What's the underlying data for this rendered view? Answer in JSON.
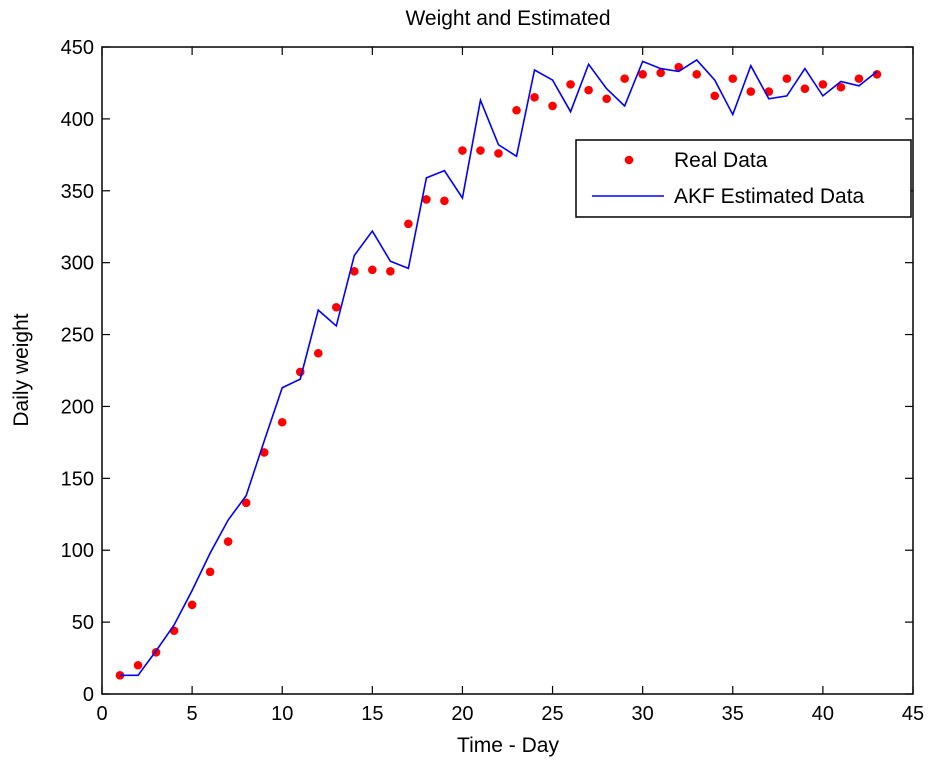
{
  "chart_data": {
    "type": "line",
    "title": "Weight and Estimated",
    "xlabel": "Time - Day",
    "ylabel": "Daily weight",
    "xlim": [
      0,
      45
    ],
    "ylim": [
      0,
      450
    ],
    "xticks": [
      0,
      5,
      10,
      15,
      20,
      25,
      30,
      35,
      40,
      45
    ],
    "yticks": [
      0,
      50,
      100,
      150,
      200,
      250,
      300,
      350,
      400,
      450
    ],
    "grid": false,
    "legend_position": "top-right",
    "series": [
      {
        "name": "Real Data",
        "kind": "scatter",
        "color": "#ff0000",
        "x": [
          1,
          2,
          3,
          4,
          5,
          6,
          7,
          8,
          9,
          10,
          11,
          12,
          13,
          14,
          15,
          16,
          17,
          18,
          19,
          20,
          21,
          22,
          23,
          24,
          25,
          26,
          27,
          28,
          29,
          30,
          31,
          32,
          33,
          34,
          35,
          36,
          37,
          38,
          39,
          40,
          41,
          42,
          43
        ],
        "y": [
          13,
          20,
          29,
          44,
          62,
          85,
          106,
          133,
          168,
          189,
          224,
          237,
          269,
          294,
          295,
          294,
          327,
          344,
          343,
          378,
          378,
          376,
          406,
          415,
          409,
          424,
          420,
          414,
          428,
          431,
          432,
          436,
          431,
          416,
          428,
          419,
          419,
          428,
          421,
          424,
          422,
          428,
          431
        ]
      },
      {
        "name": "AKF Estimated Data",
        "kind": "line",
        "color": "#0000ff",
        "x": [
          1,
          2,
          3,
          4,
          5,
          6,
          7,
          8,
          9,
          10,
          11,
          12,
          13,
          14,
          15,
          16,
          17,
          18,
          19,
          20,
          21,
          22,
          23,
          24,
          25,
          26,
          27,
          28,
          29,
          30,
          31,
          32,
          33,
          34,
          35,
          36,
          37,
          38,
          39,
          40,
          41,
          42,
          43
        ],
        "y": [
          13,
          13,
          30,
          48,
          72,
          98,
          121,
          138,
          176,
          213,
          219,
          267,
          256,
          305,
          322,
          301,
          296,
          359,
          364,
          345,
          413,
          382,
          374,
          434,
          427,
          405,
          438,
          421,
          409,
          440,
          435,
          433,
          441,
          427,
          403,
          437,
          414,
          416,
          435,
          416,
          426,
          423,
          433
        ]
      }
    ]
  }
}
